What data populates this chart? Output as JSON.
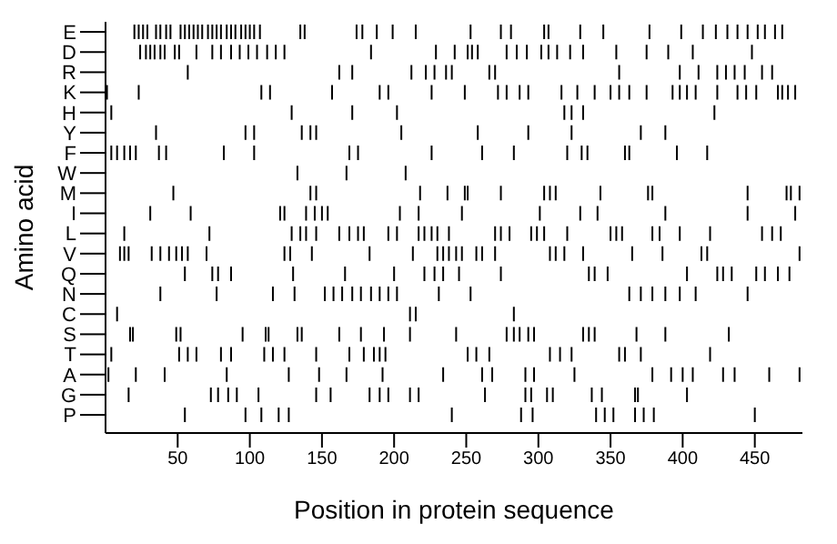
{
  "chart_data": {
    "type": "scatter",
    "orientation": "horizontal",
    "xlabel": "Position in protein sequence",
    "ylabel": "Amino acid",
    "xlim": [
      0,
      483
    ],
    "xticks": [
      50,
      100,
      150,
      200,
      250,
      300,
      350,
      400,
      450
    ],
    "grid": false,
    "categories": [
      "E",
      "D",
      "R",
      "K",
      "H",
      "Y",
      "F",
      "W",
      "M",
      "I",
      "L",
      "V",
      "Q",
      "N",
      "C",
      "S",
      "T",
      "A",
      "G",
      "P"
    ],
    "series": [
      {
        "color": "#000000",
        "x": [
          "E",
          "E",
          "E",
          "E",
          "E",
          "E",
          "E",
          "E",
          "E",
          "E",
          "E",
          "E",
          "E",
          "E",
          "E",
          "E",
          "E",
          "E",
          "E",
          "E",
          "E",
          "E",
          "E",
          "E",
          "E",
          "E",
          "E",
          "E",
          "E",
          "E",
          "E",
          "E",
          "E",
          "E",
          "E",
          "E",
          "E",
          "E",
          "E",
          "E",
          "E",
          "E",
          "E",
          "E",
          "E",
          "E",
          "E",
          "E",
          "E",
          "E",
          "E"
        ],
        "values": [
          20,
          23,
          26,
          29,
          35,
          38,
          42,
          45,
          52,
          55,
          58,
          61,
          64,
          67,
          71,
          74,
          77,
          80,
          84,
          87,
          90,
          94,
          97,
          100,
          103,
          107,
          135,
          138,
          174,
          178,
          188,
          199,
          215,
          253,
          274,
          281,
          304,
          307,
          329,
          345,
          377,
          399,
          414,
          423,
          431,
          438,
          445,
          452,
          457,
          464,
          469
        ]
      },
      {
        "color": "#000000",
        "x": [
          "D",
          "D",
          "D",
          "D",
          "D",
          "D",
          "D",
          "D",
          "D",
          "D",
          "D",
          "D",
          "D",
          "D",
          "D",
          "D",
          "D",
          "D",
          "D",
          "D",
          "D",
          "D",
          "D",
          "D",
          "D",
          "D",
          "D",
          "D",
          "D",
          "D",
          "D",
          "D",
          "D",
          "D",
          "D",
          "D",
          "D"
        ],
        "values": [
          24,
          28,
          31,
          34,
          38,
          41,
          48,
          51,
          63,
          74,
          80,
          87,
          93,
          99,
          105,
          112,
          118,
          124,
          184,
          229,
          242,
          251,
          254,
          258,
          278,
          285,
          292,
          302,
          307,
          313,
          322,
          331,
          354,
          375,
          390,
          407,
          448
        ]
      },
      {
        "color": "#000000",
        "x": [
          "R",
          "R",
          "R",
          "R",
          "R",
          "R",
          "R",
          "R",
          "R",
          "R",
          "R",
          "R",
          "R",
          "R",
          "R",
          "R",
          "R",
          "R",
          "R"
        ],
        "values": [
          57,
          162,
          171,
          212,
          222,
          228,
          236,
          240,
          266,
          270,
          356,
          398,
          411,
          424,
          430,
          436,
          443,
          455,
          462
        ]
      },
      {
        "color": "#000000",
        "x": [
          "K",
          "K",
          "K",
          "K",
          "K",
          "K",
          "K",
          "K",
          "K",
          "K",
          "K",
          "K",
          "K",
          "K",
          "K",
          "K",
          "K",
          "K",
          "K",
          "K",
          "K",
          "K",
          "K",
          "K",
          "K",
          "K",
          "K",
          "K",
          "K",
          "K",
          "K",
          "K"
        ],
        "values": [
          1,
          23,
          108,
          114,
          157,
          190,
          196,
          226,
          249,
          272,
          278,
          287,
          293,
          316,
          327,
          339,
          350,
          356,
          363,
          375,
          393,
          398,
          403,
          409,
          424,
          438,
          444,
          451,
          466,
          469,
          473,
          478
        ]
      },
      {
        "color": "#000000",
        "x": [
          "H",
          "H",
          "H",
          "H",
          "H",
          "H",
          "H",
          "H"
        ],
        "values": [
          4,
          129,
          171,
          202,
          318,
          323,
          331,
          422
        ]
      },
      {
        "color": "#000000",
        "x": [
          "Y",
          "Y",
          "Y",
          "Y",
          "Y",
          "Y",
          "Y",
          "Y",
          "Y",
          "Y",
          "Y",
          "Y"
        ],
        "values": [
          35,
          97,
          103,
          136,
          142,
          146,
          205,
          258,
          293,
          323,
          371,
          388
        ]
      },
      {
        "color": "#000000",
        "x": [
          "F",
          "F",
          "F",
          "F",
          "F",
          "F",
          "F",
          "F",
          "F",
          "F",
          "F",
          "F",
          "F",
          "F",
          "F",
          "F",
          "F",
          "F",
          "F",
          "F",
          "F"
        ],
        "values": [
          4,
          8,
          13,
          17,
          21,
          37,
          42,
          82,
          103,
          169,
          175,
          226,
          261,
          283,
          320,
          330,
          334,
          360,
          363,
          396,
          417
        ]
      },
      {
        "color": "#000000",
        "x": [
          "W",
          "W",
          "W"
        ],
        "values": [
          133,
          167,
          208
        ]
      },
      {
        "color": "#000000",
        "x": [
          "M",
          "M",
          "M",
          "M",
          "M",
          "M",
          "M",
          "M",
          "M",
          "M",
          "M",
          "M",
          "M",
          "M",
          "M",
          "M",
          "M",
          "M"
        ],
        "values": [
          47,
          142,
          146,
          218,
          237,
          249,
          251,
          274,
          304,
          308,
          312,
          343,
          376,
          379,
          445,
          472,
          475,
          481
        ]
      },
      {
        "color": "#000000",
        "x": [
          "I",
          "I",
          "I",
          "I",
          "I",
          "I",
          "I",
          "I",
          "I",
          "I",
          "I",
          "I",
          "I",
          "I",
          "I",
          "I",
          "I"
        ],
        "values": [
          31,
          59,
          121,
          124,
          139,
          145,
          150,
          154,
          204,
          217,
          247,
          301,
          329,
          341,
          388,
          445,
          478
        ]
      },
      {
        "color": "#000000",
        "x": [
          "L",
          "L",
          "L",
          "L",
          "L",
          "L",
          "L",
          "L",
          "L",
          "L",
          "L",
          "L",
          "L",
          "L",
          "L",
          "L",
          "L",
          "L",
          "L",
          "L",
          "L",
          "L",
          "L",
          "L",
          "L",
          "L",
          "L",
          "L",
          "L",
          "L",
          "L",
          "L",
          "L",
          "L"
        ],
        "values": [
          13,
          72,
          129,
          135,
          139,
          146,
          162,
          169,
          175,
          179,
          196,
          202,
          217,
          221,
          226,
          230,
          238,
          270,
          274,
          280,
          295,
          299,
          304,
          320,
          350,
          354,
          358,
          379,
          384,
          398,
          419,
          455,
          462,
          468
        ]
      },
      {
        "color": "#000000",
        "x": [
          "V",
          "V",
          "V",
          "V",
          "V",
          "V",
          "V",
          "V",
          "V",
          "V",
          "V",
          "V",
          "V",
          "V",
          "V",
          "V",
          "V",
          "V",
          "V",
          "V",
          "V",
          "V",
          "V",
          "V",
          "V",
          "V",
          "V",
          "V",
          "V",
          "V",
          "V",
          "V"
        ],
        "values": [
          10,
          13,
          16,
          32,
          38,
          44,
          49,
          53,
          57,
          70,
          124,
          128,
          143,
          183,
          213,
          230,
          234,
          238,
          243,
          247,
          257,
          261,
          270,
          308,
          312,
          318,
          331,
          365,
          386,
          413,
          417,
          481
        ]
      },
      {
        "color": "#000000",
        "x": [
          "Q",
          "Q",
          "Q",
          "Q",
          "Q",
          "Q",
          "Q",
          "Q",
          "Q",
          "Q",
          "Q",
          "Q",
          "Q",
          "Q",
          "Q",
          "Q",
          "Q",
          "Q",
          "Q",
          "Q",
          "Q",
          "Q",
          "Q"
        ],
        "values": [
          55,
          74,
          78,
          87,
          130,
          166,
          200,
          221,
          228,
          234,
          245,
          274,
          335,
          339,
          348,
          403,
          424,
          428,
          434,
          451,
          457,
          466,
          474
        ]
      },
      {
        "color": "#000000",
        "x": [
          "N",
          "N",
          "N",
          "N",
          "N",
          "N",
          "N",
          "N",
          "N",
          "N",
          "N",
          "N",
          "N",
          "N",
          "N",
          "N",
          "N",
          "N",
          "N",
          "N",
          "N",
          "N"
        ],
        "values": [
          38,
          77,
          116,
          131,
          152,
          158,
          164,
          171,
          177,
          184,
          190,
          196,
          202,
          231,
          253,
          363,
          371,
          379,
          388,
          398,
          409,
          445
        ]
      },
      {
        "color": "#000000",
        "x": [
          "C",
          "C",
          "C",
          "C"
        ],
        "values": [
          8,
          211,
          215,
          283
        ]
      },
      {
        "color": "#000000",
        "x": [
          "S",
          "S",
          "S",
          "S",
          "S",
          "S",
          "S",
          "S",
          "S",
          "S",
          "S",
          "S",
          "S",
          "S",
          "S",
          "S",
          "S",
          "S",
          "S",
          "S",
          "S",
          "S",
          "S",
          "S",
          "S"
        ],
        "values": [
          17,
          19,
          49,
          52,
          95,
          111,
          113,
          133,
          136,
          162,
          177,
          193,
          211,
          243,
          278,
          283,
          287,
          293,
          297,
          331,
          335,
          339,
          368,
          388,
          432
        ]
      },
      {
        "color": "#000000",
        "x": [
          "T",
          "T",
          "T",
          "T",
          "T",
          "T",
          "T",
          "T",
          "T",
          "T",
          "T",
          "T",
          "T",
          "T",
          "T",
          "T",
          "T",
          "T",
          "T",
          "T",
          "T",
          "T",
          "T",
          "T",
          "T"
        ],
        "values": [
          4,
          51,
          57,
          63,
          80,
          87,
          110,
          116,
          124,
          146,
          169,
          179,
          186,
          190,
          194,
          251,
          257,
          266,
          308,
          315,
          323,
          356,
          360,
          371,
          419
        ]
      },
      {
        "color": "#000000",
        "x": [
          "A",
          "A",
          "A",
          "A",
          "A",
          "A",
          "A",
          "A",
          "A",
          "A",
          "A",
          "A",
          "A",
          "A",
          "A",
          "A",
          "A",
          "A",
          "A",
          "A",
          "A",
          "A"
        ],
        "values": [
          2,
          21,
          41,
          84,
          127,
          148,
          167,
          192,
          234,
          261,
          268,
          291,
          297,
          325,
          379,
          392,
          400,
          407,
          428,
          436,
          460,
          481
        ]
      },
      {
        "color": "#000000",
        "x": [
          "G",
          "G",
          "G",
          "G",
          "G",
          "G",
          "G",
          "G",
          "G",
          "G",
          "G",
          "G",
          "G",
          "G",
          "G",
          "G",
          "G",
          "G",
          "G",
          "G",
          "G",
          "G",
          "G"
        ],
        "values": [
          16,
          73,
          78,
          85,
          91,
          106,
          146,
          156,
          183,
          190,
          196,
          211,
          217,
          263,
          291,
          295,
          306,
          310,
          337,
          344,
          367,
          369,
          403
        ]
      },
      {
        "color": "#000000",
        "x": [
          "P",
          "P",
          "P",
          "P",
          "P",
          "P",
          "P",
          "P",
          "P",
          "P",
          "P",
          "P",
          "P",
          "P",
          "P"
        ],
        "values": [
          55,
          97,
          108,
          120,
          127,
          240,
          288,
          296,
          340,
          346,
          352,
          367,
          373,
          380,
          450
        ]
      }
    ]
  }
}
